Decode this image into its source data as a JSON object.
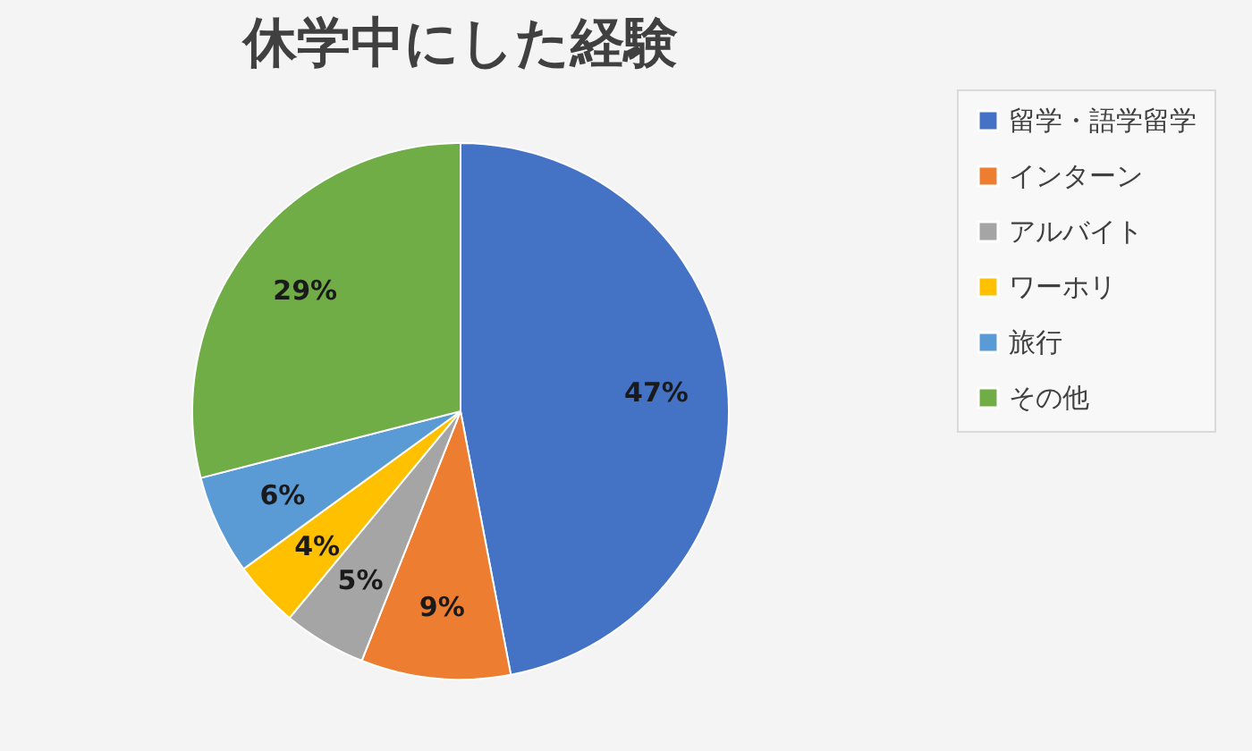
{
  "chart_data": {
    "type": "pie",
    "title": "休学中にした経験",
    "categories": [
      "留学・語学留学",
      "インターン",
      "アルバイト",
      "ワーホリ",
      "旅行",
      "その他"
    ],
    "values": [
      47,
      9,
      5,
      4,
      6,
      29
    ],
    "colors": [
      "#4472c4",
      "#ed7d31",
      "#a5a5a5",
      "#ffc000",
      "#5b9bd5",
      "#70ad47"
    ],
    "value_labels": [
      "47%",
      "9%",
      "5%",
      "4%",
      "6%",
      "29%"
    ],
    "legend": "right"
  }
}
